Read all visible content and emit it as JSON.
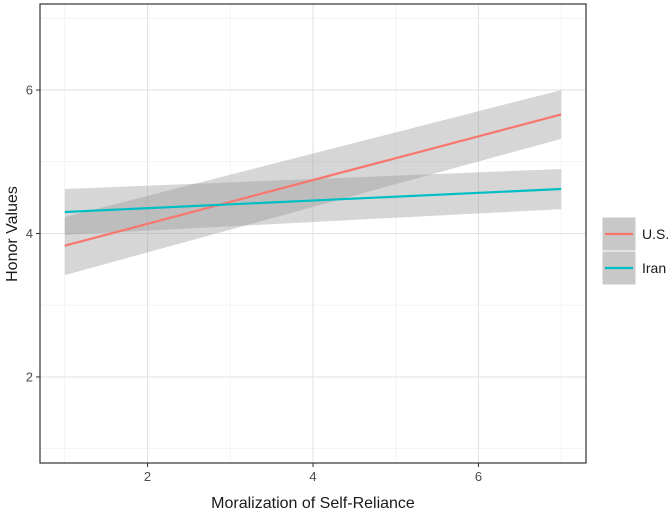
{
  "chart_data": {
    "type": "line",
    "title": "",
    "xlabel": "Moralization of Self-Reliance",
    "ylabel": "Honor Values",
    "xlim": [
      0.7,
      7.3
    ],
    "ylim": [
      0.8,
      7.2
    ],
    "xticks": [
      2,
      4,
      6
    ],
    "yticks": [
      2,
      4,
      6
    ],
    "xminor": [
      1,
      3,
      5,
      7
    ],
    "yminor": [
      1,
      3,
      5,
      7
    ],
    "grid": true,
    "legend_position": "right",
    "series": [
      {
        "name": "U.S.",
        "color": "#F8766D",
        "x": [
          1,
          7
        ],
        "y": [
          3.83,
          5.66
        ],
        "ci_lower": [
          3.42,
          5.32
        ],
        "ci_upper": [
          4.23,
          6.0
        ]
      },
      {
        "name": "Iran",
        "color": "#00BFC4",
        "x": [
          1,
          7
        ],
        "y": [
          4.3,
          4.62
        ],
        "ci_lower": [
          3.98,
          4.34
        ],
        "ci_upper": [
          4.62,
          4.9
        ]
      }
    ]
  }
}
